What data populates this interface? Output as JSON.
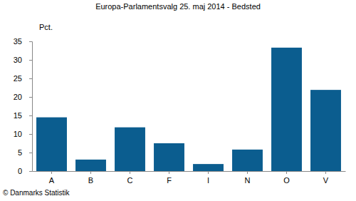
{
  "chart_data": {
    "type": "bar",
    "title": "Europa-Parlamentsvalg 25. maj 2014 - Bedsted",
    "ylabel": "Pct.",
    "source": "© Danmarks Statistik",
    "categories": [
      "A",
      "B",
      "C",
      "F",
      "I",
      "N",
      "O",
      "V"
    ],
    "values": [
      14.5,
      3.1,
      11.8,
      7.5,
      1.9,
      5.8,
      33.3,
      21.9
    ],
    "color": "#0b5d8f",
    "ylim": [
      0,
      35
    ],
    "yticks": [
      0,
      5,
      10,
      15,
      20,
      25,
      30,
      35
    ],
    "grid": false
  }
}
